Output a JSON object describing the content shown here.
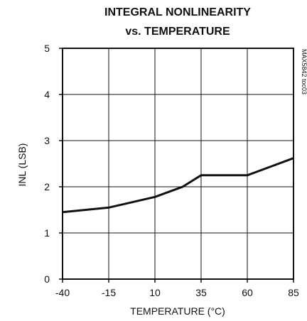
{
  "chart_data": {
    "type": "line",
    "title_line1": "INTEGRAL NONLINEARITY",
    "title_line2": "vs. TEMPERATURE",
    "xlabel": "TEMPERATURE (°C)",
    "ylabel": "INL (LSB)",
    "side_tag": "MAX5842 toc03",
    "xlim": [
      -40,
      85
    ],
    "ylim": [
      0,
      5
    ],
    "x_ticks": [
      -40,
      -15,
      10,
      35,
      60,
      85
    ],
    "x_tick_labels": [
      "-40",
      "-15",
      "10",
      "35",
      "60",
      "85"
    ],
    "y_ticks": [
      0,
      1,
      2,
      3,
      4,
      5
    ],
    "y_tick_labels": [
      "0",
      "1",
      "2",
      "3",
      "4",
      "5"
    ],
    "grid": true,
    "series": [
      {
        "x": [
          -40,
          -15,
          10,
          25,
          35,
          60,
          85
        ],
        "y": [
          1.45,
          1.55,
          1.78,
          2.0,
          2.25,
          2.25,
          2.62
        ]
      }
    ]
  }
}
